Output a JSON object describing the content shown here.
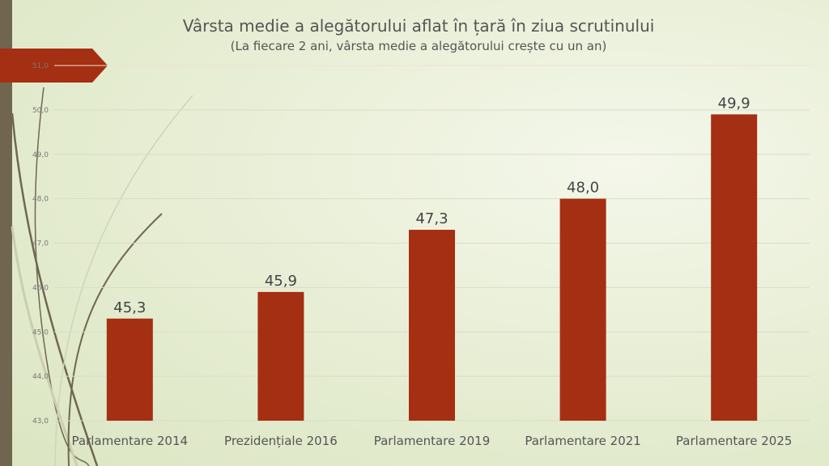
{
  "chart_data": {
    "type": "bar",
    "title": "Vârsta medie a alegătorului aflat în țară în ziua scrutinului",
    "subtitle": "(La fiecare 2 ani, vârsta medie a alegătorului crește cu un an)",
    "categories": [
      "Parlamentare 2014",
      "Prezidențiale 2016",
      "Parlamentare 2019",
      "Parlamentare 2021",
      "Parlamentare 2025"
    ],
    "values": [
      45.3,
      45.9,
      47.3,
      48.0,
      49.9
    ],
    "data_labels": [
      "45,3",
      "45,9",
      "47,3",
      "48,0",
      "49,9"
    ],
    "ylim": [
      43,
      51
    ],
    "yticks": [
      "43,0",
      "44,0",
      "45,0",
      "46,0",
      "47,0",
      "48,0",
      "49,0",
      "50,0",
      "51,0"
    ],
    "xlabel": "",
    "ylabel": "",
    "grid": true,
    "colors": {
      "bar": "#a52f12",
      "accent_strip": "#706650"
    }
  }
}
